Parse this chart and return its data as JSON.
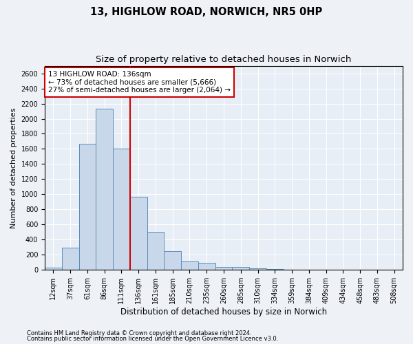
{
  "title": "13, HIGHLOW ROAD, NORWICH, NR5 0HP",
  "subtitle": "Size of property relative to detached houses in Norwich",
  "xlabel": "Distribution of detached houses by size in Norwich",
  "ylabel": "Number of detached properties",
  "bar_color": "#c8d8ea",
  "bar_edge_color": "#5b8db8",
  "categories": [
    "12sqm",
    "37sqm",
    "61sqm",
    "86sqm",
    "111sqm",
    "136sqm",
    "161sqm",
    "185sqm",
    "210sqm",
    "235sqm",
    "260sqm",
    "285sqm",
    "310sqm",
    "334sqm",
    "359sqm",
    "384sqm",
    "409sqm",
    "434sqm",
    "458sqm",
    "483sqm",
    "508sqm"
  ],
  "values": [
    30,
    295,
    1670,
    2130,
    1600,
    970,
    500,
    245,
    115,
    95,
    40,
    40,
    20,
    10,
    5,
    5,
    3,
    3,
    2,
    1,
    2
  ],
  "ylim": [
    0,
    2700
  ],
  "yticks": [
    0,
    200,
    400,
    600,
    800,
    1000,
    1200,
    1400,
    1600,
    1800,
    2000,
    2200,
    2400,
    2600
  ],
  "vline_index": 5,
  "vline_color": "#cc0000",
  "annotation_line1": "13 HIGHLOW ROAD: 136sqm",
  "annotation_line2": "← 73% of detached houses are smaller (5,666)",
  "annotation_line3": "27% of semi-detached houses are larger (2,064) →",
  "annotation_box_facecolor": "#ffffff",
  "annotation_box_edgecolor": "#cc0000",
  "footer1": "Contains HM Land Registry data © Crown copyright and database right 2024.",
  "footer2": "Contains public sector information licensed under the Open Government Licence v3.0.",
  "background_color": "#eef2f7",
  "plot_bg_color": "#e8eef5",
  "grid_color": "#ffffff",
  "title_fontsize": 10.5,
  "subtitle_fontsize": 9.5,
  "tick_fontsize": 7,
  "ylabel_fontsize": 8,
  "xlabel_fontsize": 8.5,
  "annotation_fontsize": 7.5,
  "footer_fontsize": 6
}
